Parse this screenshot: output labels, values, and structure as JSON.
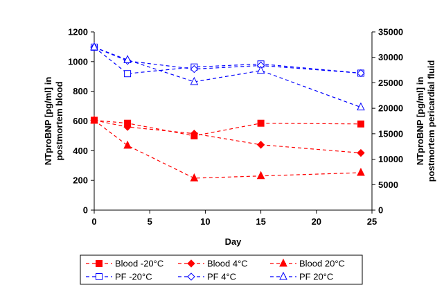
{
  "chart_data": {
    "type": "line",
    "xlabel": "Day",
    "ylabel_left": "NTproBNP [pg/ml] in postmortem blood",
    "ylabel_right": "NTproBNP [pg/ml] in postmortem pericardial fluid",
    "xlim": [
      0,
      25
    ],
    "ylim_left": [
      0,
      1200
    ],
    "ylim_right": [
      0,
      35000
    ],
    "x_ticks": [
      "0",
      "5",
      "10",
      "15",
      "20",
      "25"
    ],
    "y_left_ticks": [
      "0",
      "200",
      "400",
      "600",
      "800",
      "1000",
      "1200"
    ],
    "y_right_ticks": [
      "0",
      "5000",
      "10000",
      "15000",
      "20000",
      "25000",
      "30000",
      "35000"
    ],
    "grid": false,
    "legend_position": "bottom",
    "series": [
      {
        "name": "Blood -20°C",
        "axis": "left",
        "color": "#ff0000",
        "marker": "square-filled",
        "x": [
          0,
          3,
          9,
          15,
          24
        ],
        "y": [
          605,
          585,
          500,
          585,
          580
        ]
      },
      {
        "name": "Blood 4°C",
        "axis": "left",
        "color": "#ff0000",
        "marker": "diamond-filled",
        "x": [
          0,
          3,
          9,
          15,
          24
        ],
        "y": [
          605,
          560,
          515,
          440,
          385
        ]
      },
      {
        "name": "Blood 20°C",
        "axis": "left",
        "color": "#ff0000",
        "marker": "triangle-filled",
        "x": [
          0,
          3,
          9,
          15,
          24
        ],
        "y": [
          605,
          435,
          215,
          230,
          252
        ]
      },
      {
        "name": "PF -20°C",
        "axis": "right",
        "color": "#0000ff",
        "marker": "square-open",
        "x": [
          0,
          3,
          9,
          15,
          24
        ],
        "y": [
          32000,
          26800,
          28100,
          28700,
          26900
        ]
      },
      {
        "name": "PF 4°C",
        "axis": "right",
        "color": "#0000ff",
        "marker": "diamond-open",
        "x": [
          0,
          3,
          9,
          15,
          24
        ],
        "y": [
          32000,
          29300,
          27700,
          28400,
          26900
        ]
      },
      {
        "name": "PF 20°C",
        "axis": "right",
        "color": "#0000ff",
        "marker": "triangle-open",
        "x": [
          0,
          3,
          9,
          15,
          24
        ],
        "y": [
          32000,
          29500,
          25200,
          27400,
          20200
        ]
      }
    ]
  }
}
